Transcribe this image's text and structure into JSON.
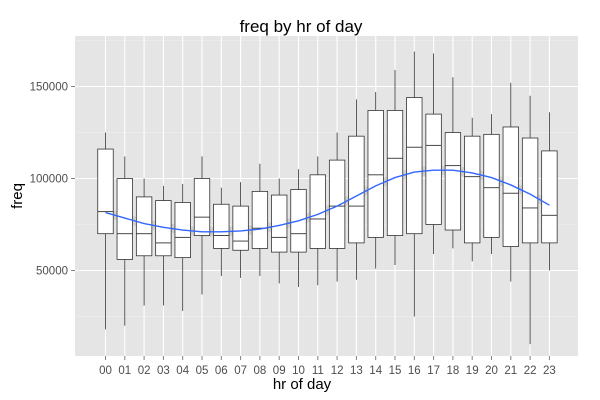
{
  "chart_data": {
    "type": "boxplot",
    "title": "freq by hr of day",
    "xlabel": "hr of day",
    "ylabel": "freq",
    "categories": [
      "00",
      "01",
      "02",
      "03",
      "04",
      "05",
      "06",
      "07",
      "08",
      "09",
      "10",
      "11",
      "12",
      "13",
      "14",
      "15",
      "16",
      "17",
      "18",
      "19",
      "20",
      "21",
      "22",
      "23"
    ],
    "ylim": [
      0,
      175000
    ],
    "yticks": [
      50000,
      100000,
      150000
    ],
    "ytick_labels": [
      "50000",
      "100000",
      "150000"
    ],
    "boxes": [
      {
        "x": "00",
        "whisker_low": 18000,
        "q1": 70000,
        "median": 82000,
        "q3": 116000,
        "whisker_high": 125000
      },
      {
        "x": "01",
        "whisker_low": 20000,
        "q1": 56000,
        "median": 70000,
        "q3": 100000,
        "whisker_high": 112000
      },
      {
        "x": "02",
        "whisker_low": 31000,
        "q1": 58000,
        "median": 70000,
        "q3": 90000,
        "whisker_high": 100000
      },
      {
        "x": "03",
        "whisker_low": 31000,
        "q1": 58000,
        "median": 65000,
        "q3": 88000,
        "whisker_high": 96000
      },
      {
        "x": "04",
        "whisker_low": 28000,
        "q1": 57000,
        "median": 68000,
        "q3": 87000,
        "whisker_high": 97000
      },
      {
        "x": "05",
        "whisker_low": 37000,
        "q1": 69000,
        "median": 79000,
        "q3": 100000,
        "whisker_high": 112000
      },
      {
        "x": "06",
        "whisker_low": 47000,
        "q1": 62000,
        "median": 69000,
        "q3": 86000,
        "whisker_high": 95000
      },
      {
        "x": "07",
        "whisker_low": 46000,
        "q1": 61000,
        "median": 66000,
        "q3": 85000,
        "whisker_high": 98000
      },
      {
        "x": "08",
        "whisker_low": 47000,
        "q1": 62000,
        "median": 73000,
        "q3": 93000,
        "whisker_high": 108000
      },
      {
        "x": "09",
        "whisker_low": 43000,
        "q1": 60000,
        "median": 68000,
        "q3": 91000,
        "whisker_high": 100000
      },
      {
        "x": "10",
        "whisker_low": 41000,
        "q1": 60000,
        "median": 70000,
        "q3": 94000,
        "whisker_high": 105000
      },
      {
        "x": "11",
        "whisker_low": 42000,
        "q1": 62000,
        "median": 78000,
        "q3": 102000,
        "whisker_high": 112000
      },
      {
        "x": "12",
        "whisker_low": 44000,
        "q1": 62000,
        "median": 85000,
        "q3": 110000,
        "whisker_high": 125000
      },
      {
        "x": "13",
        "whisker_low": 45000,
        "q1": 65000,
        "median": 85000,
        "q3": 123000,
        "whisker_high": 143000
      },
      {
        "x": "14",
        "whisker_low": 51000,
        "q1": 68000,
        "median": 102000,
        "q3": 137000,
        "whisker_high": 147000
      },
      {
        "x": "15",
        "whisker_low": 53000,
        "q1": 69000,
        "median": 111000,
        "q3": 137000,
        "whisker_high": 159000
      },
      {
        "x": "16",
        "whisker_low": 25000,
        "q1": 70000,
        "median": 117000,
        "q3": 144000,
        "whisker_high": 169000
      },
      {
        "x": "17",
        "whisker_low": 59000,
        "q1": 75000,
        "median": 118000,
        "q3": 135000,
        "whisker_high": 168000
      },
      {
        "x": "18",
        "whisker_low": 62000,
        "q1": 72000,
        "median": 107000,
        "q3": 125000,
        "whisker_high": 155000
      },
      {
        "x": "19",
        "whisker_low": 55000,
        "q1": 65000,
        "median": 101000,
        "q3": 123000,
        "whisker_high": 133000
      },
      {
        "x": "20",
        "whisker_low": 59000,
        "q1": 68000,
        "median": 95000,
        "q3": 124000,
        "whisker_high": 135000
      },
      {
        "x": "21",
        "whisker_low": 44000,
        "q1": 63000,
        "median": 92000,
        "q3": 128000,
        "whisker_high": 152000
      },
      {
        "x": "22",
        "whisker_low": 10000,
        "q1": 65000,
        "median": 84000,
        "q3": 122000,
        "whisker_high": 145000
      },
      {
        "x": "23",
        "whisker_low": 50000,
        "q1": 65000,
        "median": 80000,
        "q3": 115000,
        "whisker_high": 136000
      }
    ],
    "smooth": {
      "method": "loess",
      "values": [
        81500,
        78500,
        75500,
        73500,
        72000,
        71000,
        71000,
        71500,
        72500,
        74500,
        77000,
        80500,
        85000,
        90500,
        96000,
        100500,
        103500,
        104500,
        104500,
        103000,
        100500,
        96500,
        91500,
        85500
      ],
      "confidence_band": true
    },
    "colors": {
      "panel_background": "#e5e5e5",
      "grid": "#ffffff",
      "box_fill": "#ffffff",
      "box_stroke": "#333333",
      "smooth_line": "#3366ff",
      "smooth_band": "#c8c8c8"
    },
    "grid": true,
    "legend": "none"
  }
}
